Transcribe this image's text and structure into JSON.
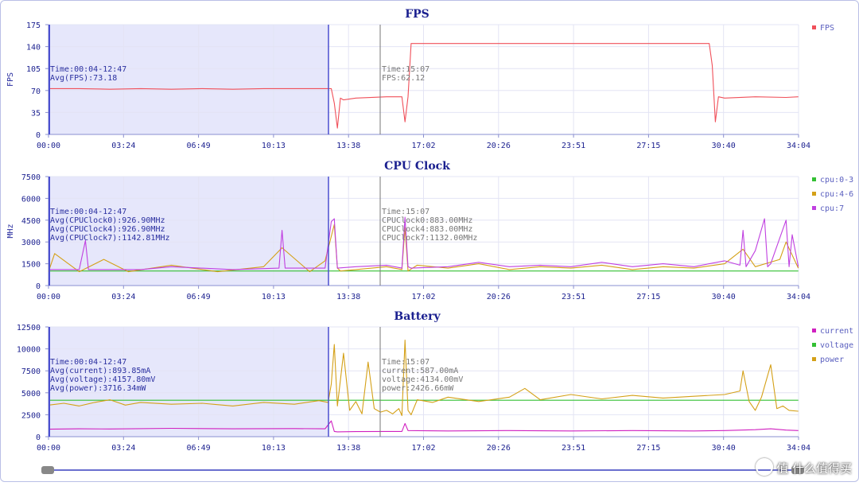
{
  "x_ticks": [
    "00:00",
    "03:24",
    "06:49",
    "10:13",
    "13:38",
    "17:02",
    "20:26",
    "23:51",
    "27:15",
    "30:40",
    "34:04"
  ],
  "x_range_minutes": [
    0,
    244.07
  ],
  "selection_range": "00:04-12:47",
  "cursor_time": "15:07",
  "colors": {
    "fps": "#f0505a",
    "cpu0_3": "#33c033",
    "cpu4_6": "#d4a017",
    "cpu7": "#c040e0",
    "current": "#d020c0",
    "voltage": "#33c033",
    "power": "#d4a017",
    "selection_fill": "#e6e7fb",
    "selection_edge": "#4a4fd0",
    "grid": "#e3e4f4",
    "axis": "#8a8fd0"
  },
  "chart_data": [
    {
      "type": "line",
      "title": "FPS",
      "ylabel": "FPS",
      "ylim": [
        0,
        175
      ],
      "yticks": [
        "0",
        "35",
        "70",
        "105",
        "140",
        "175"
      ],
      "legend": [
        "FPS"
      ],
      "legend_placement": "right",
      "grid": true,
      "selection_lines": [
        "Time:00:04-12:47",
        "Avg(FPS):73.18"
      ],
      "cursor_lines": [
        "Time:15:07",
        "FPS:62.12"
      ],
      "series": [
        {
          "name": "FPS",
          "x": [
            0,
            10,
            20,
            30,
            40,
            50,
            60,
            70,
            80,
            90,
            92,
            93,
            94,
            95,
            96,
            100,
            110,
            115,
            116,
            117,
            118,
            130,
            140,
            150,
            160,
            170,
            180,
            190,
            200,
            210,
            215,
            216,
            217,
            218,
            220,
            230,
            240,
            244
          ],
          "values": [
            73,
            73,
            72,
            73,
            72,
            73,
            72,
            73,
            73,
            73,
            73,
            50,
            10,
            58,
            55,
            58,
            60,
            60,
            20,
            60,
            145,
            145,
            145,
            145,
            145,
            145,
            145,
            145,
            145,
            145,
            145,
            110,
            20,
            60,
            58,
            60,
            59,
            60
          ]
        }
      ]
    },
    {
      "type": "line",
      "title": "CPU Clock",
      "ylabel": "MHz",
      "ylim": [
        0,
        7500
      ],
      "yticks": [
        "0",
        "1500",
        "3000",
        "4500",
        "6000",
        "7500"
      ],
      "legend": [
        "cpu:0-3",
        "cpu:4-6",
        "cpu:7"
      ],
      "legend_placement": "right",
      "grid": true,
      "selection_lines": [
        "Time:00:04-12:47",
        "Avg(CPUClock0):926.90MHz",
        "Avg(CPUClock4):926.90MHz",
        "Avg(CPUClock7):1142.81MHz"
      ],
      "cursor_lines": [
        "Time:15:07",
        "CPUClock0:883.00MHz",
        "CPUClock4:883.00MHz",
        "CPUClock7:1132.00MHz"
      ],
      "series": [
        {
          "name": "cpu:0-3",
          "x": [
            0,
            244
          ],
          "values": [
            1000,
            1000
          ]
        },
        {
          "name": "cpu:4-6",
          "x": [
            0,
            2,
            10,
            18,
            26,
            40,
            55,
            70,
            76,
            85,
            90,
            93,
            94,
            95,
            100,
            110,
            115,
            116,
            117,
            120,
            130,
            140,
            150,
            160,
            170,
            180,
            190,
            200,
            210,
            220,
            226,
            230,
            238,
            240,
            244
          ],
          "values": [
            950,
            2200,
            950,
            1800,
            950,
            1400,
            950,
            1300,
            2600,
            950,
            1700,
            4200,
            1200,
            1000,
            1100,
            1300,
            1100,
            4000,
            1000,
            1400,
            1200,
            1500,
            1100,
            1300,
            1200,
            1400,
            1100,
            1300,
            1200,
            1500,
            2500,
            1300,
            1800,
            3000,
            1200
          ]
        },
        {
          "name": "cpu:7",
          "x": [
            0,
            10,
            12,
            13,
            30,
            40,
            60,
            75,
            76,
            77,
            90,
            92,
            93,
            94,
            100,
            110,
            115,
            116,
            117,
            118,
            130,
            140,
            150,
            160,
            170,
            180,
            190,
            200,
            210,
            220,
            225,
            226,
            227,
            230,
            233,
            234,
            235,
            240,
            241,
            242,
            244
          ],
          "values": [
            1100,
            1100,
            3100,
            1100,
            1100,
            1300,
            1100,
            1200,
            3800,
            1200,
            1200,
            4400,
            4600,
            1200,
            1300,
            1400,
            1200,
            4700,
            1300,
            1200,
            1300,
            1600,
            1300,
            1400,
            1300,
            1600,
            1300,
            1500,
            1300,
            1700,
            1400,
            3800,
            1300,
            2400,
            4600,
            1300,
            1500,
            4500,
            1300,
            3500,
            1300
          ]
        }
      ]
    },
    {
      "type": "line",
      "title": "Battery",
      "ylabel": "",
      "ylim": [
        0,
        12500
      ],
      "yticks": [
        "0",
        "2500",
        "5000",
        "7500",
        "10000",
        "12500"
      ],
      "legend": [
        "current",
        "voltage",
        "power"
      ],
      "legend_placement": "right",
      "grid": true,
      "selection_lines": [
        "Time:00:04-12:47",
        "Avg(current):893.85mA",
        "Avg(voltage):4157.80mV",
        "Avg(power):3716.34mW"
      ],
      "cursor_lines": [
        "Time:15:07",
        "current:587.00mA",
        "voltage:4134.00mV",
        "power:2426.66mW"
      ],
      "series": [
        {
          "name": "current",
          "x": [
            0,
            10,
            20,
            40,
            60,
            80,
            90,
            92,
            93,
            94,
            100,
            110,
            115,
            116,
            117,
            130,
            150,
            170,
            190,
            210,
            220,
            230,
            235,
            240,
            244
          ],
          "values": [
            850,
            900,
            880,
            950,
            900,
            920,
            900,
            1800,
            600,
            550,
            580,
            600,
            600,
            1500,
            700,
            650,
            700,
            650,
            700,
            650,
            700,
            800,
            900,
            750,
            700
          ]
        },
        {
          "name": "voltage",
          "x": [
            0,
            244
          ],
          "values": [
            4150,
            4150
          ]
        },
        {
          "name": "power",
          "x": [
            0,
            5,
            10,
            15,
            20,
            25,
            30,
            40,
            50,
            60,
            70,
            80,
            88,
            91,
            92,
            93,
            94,
            96,
            98,
            100,
            102,
            104,
            106,
            108,
            110,
            112,
            114,
            115,
            116,
            117,
            118,
            120,
            125,
            130,
            140,
            150,
            155,
            160,
            170,
            180,
            190,
            200,
            210,
            220,
            225,
            226,
            228,
            230,
            232,
            235,
            237,
            239,
            241,
            244
          ],
          "values": [
            3600,
            3800,
            3500,
            3900,
            4200,
            3600,
            3900,
            3700,
            3800,
            3500,
            3900,
            3700,
            4100,
            3900,
            6000,
            10500,
            3500,
            9500,
            3000,
            4000,
            2600,
            8500,
            3200,
            2800,
            3000,
            2600,
            3200,
            2400,
            11000,
            3000,
            2500,
            4200,
            3900,
            4500,
            4000,
            4500,
            5500,
            4200,
            4800,
            4300,
            4700,
            4400,
            4600,
            4800,
            5200,
            7500,
            4000,
            3000,
            4500,
            8200,
            3200,
            3500,
            3000,
            2900
          ]
        }
      ]
    }
  ],
  "watermark_text": "值 什么值得买"
}
